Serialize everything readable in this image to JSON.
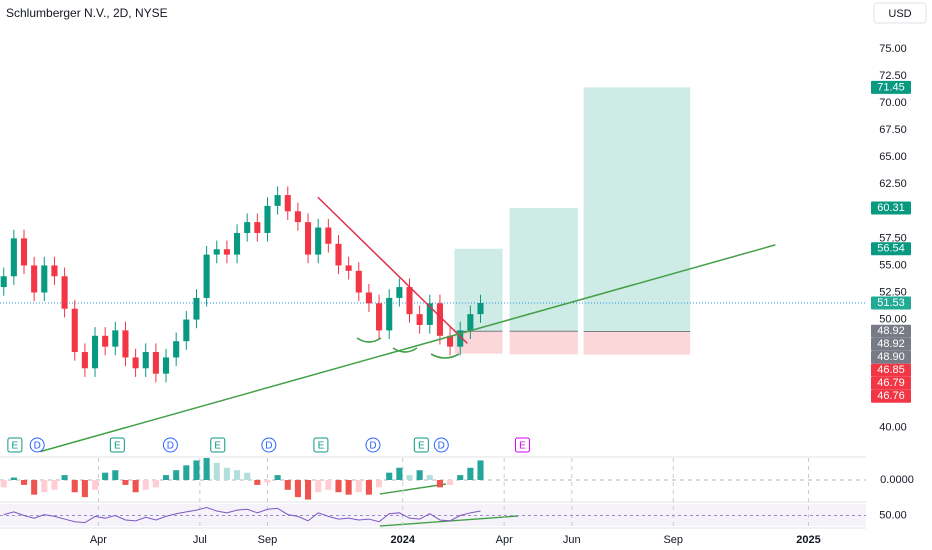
{
  "chart_data": {
    "type": "candlestick",
    "title": "Schlumberger N.V., 2D, NYSE",
    "currency": "USD",
    "x": [
      0.2,
      0.5,
      0.8,
      1.1,
      1.4,
      1.7,
      2.0,
      2.3,
      2.6,
      2.9,
      3.2,
      3.5,
      3.8,
      4.1,
      4.4,
      4.7,
      5.0,
      5.3,
      5.6,
      5.9,
      6.2,
      6.5,
      6.8,
      7.1,
      7.4,
      7.7,
      8.0,
      8.3,
      8.6,
      8.9,
      9.2,
      9.5,
      9.8,
      10.1,
      10.4,
      10.7,
      11.0,
      11.3,
      11.6,
      11.9,
      12.2,
      12.5,
      12.8,
      13.1,
      13.4,
      13.7,
      14.0,
      14.3
    ],
    "open": [
      53,
      54,
      57.5,
      55,
      52.5,
      55,
      54,
      51,
      47,
      45.5,
      48.5,
      47.5,
      49,
      46.5,
      45.5,
      47,
      45,
      46.5,
      48,
      50,
      52,
      56,
      56.5,
      56,
      58,
      59,
      58,
      60.5,
      61.5,
      60,
      59,
      56,
      58.5,
      57,
      55,
      54.5,
      52.5,
      51.5,
      49,
      52,
      53,
      50.5,
      49.5,
      51.5,
      48.5,
      47.5,
      49,
      50.5
    ],
    "high": [
      54.8,
      58.3,
      58.3,
      55.8,
      55.8,
      55.8,
      54.8,
      51.8,
      47.8,
      49.3,
      49.3,
      49.8,
      49.8,
      47.3,
      47.8,
      47.8,
      47.3,
      48.8,
      50.8,
      52.8,
      56.8,
      57.3,
      57.3,
      58.8,
      59.8,
      59.8,
      61.3,
      62.3,
      62.3,
      60.8,
      59.8,
      59.3,
      59.3,
      57.8,
      55.8,
      55.3,
      53.3,
      52.3,
      52.8,
      53.8,
      53.8,
      51.3,
      52.3,
      52.3,
      49.3,
      49.8,
      51.3,
      52.3
    ],
    "low": [
      52.2,
      53.2,
      54.2,
      51.7,
      51.7,
      53.2,
      50.2,
      46.2,
      44.7,
      44.7,
      46.7,
      46.7,
      45.7,
      44.7,
      44.7,
      44.2,
      44.2,
      45.7,
      47.2,
      49.2,
      51.2,
      55.2,
      55.2,
      55.2,
      57.2,
      57.2,
      57.2,
      59.7,
      59.2,
      58.2,
      55.2,
      55.2,
      56.2,
      54.2,
      53.7,
      51.7,
      50.7,
      48.2,
      48.2,
      51.2,
      49.7,
      48.7,
      48.7,
      47.7,
      46.7,
      46.7,
      48.2,
      49.7
    ],
    "close": [
      54,
      57.5,
      55,
      52.5,
      55,
      54,
      51,
      47,
      45.5,
      48.5,
      47.5,
      49,
      46.5,
      45.5,
      47,
      45,
      46.5,
      48,
      50,
      52,
      56,
      56.5,
      56,
      58,
      59,
      58,
      60.5,
      61.5,
      60,
      59,
      56,
      58.5,
      57,
      55,
      54.5,
      52.5,
      51.5,
      49,
      52,
      53,
      50.5,
      49.5,
      51.5,
      48.5,
      47.5,
      49,
      50.5,
      51.53
    ],
    "up_color": "#089981",
    "down_color": "#f23645",
    "xlim": [
      0.09,
      25.7
    ],
    "xticks": [
      {
        "value": 3,
        "label": "Apr"
      },
      {
        "value": 6,
        "label": "Jul"
      },
      {
        "value": 8,
        "label": "Sep"
      },
      {
        "value": 12,
        "label": "2024"
      },
      {
        "value": 15,
        "label": "Apr"
      },
      {
        "value": 17,
        "label": "Jun"
      },
      {
        "value": 20,
        "label": "Sep"
      },
      {
        "value": 24,
        "label": "2025"
      }
    ],
    "ylim": [
      36.38,
      79.52
    ],
    "yticks": [
      {
        "value": 40,
        "label": "40.00"
      },
      {
        "value": 50,
        "label": "50.00"
      },
      {
        "value": 52.5,
        "label": "52.50"
      },
      {
        "value": 55,
        "label": "55.00"
      },
      {
        "value": 57.5,
        "label": "57.50"
      },
      {
        "value": 62.5,
        "label": "62.50"
      },
      {
        "value": 65,
        "label": "65.00"
      },
      {
        "value": 67.5,
        "label": "67.50"
      },
      {
        "value": 70,
        "label": "70.00"
      },
      {
        "value": 72.5,
        "label": "72.50"
      },
      {
        "value": 75,
        "label": "75.00"
      }
    ],
    "last_price": 51.53,
    "price_labels": [
      {
        "value": 71.45,
        "label": "71.45",
        "color": "#089981"
      },
      {
        "value": 60.31,
        "label": "60.31",
        "color": "#089981"
      },
      {
        "value": 56.54,
        "label": "56.54",
        "color": "#089981"
      },
      {
        "value": 51.53,
        "label": "51.53",
        "color": "#22ab94"
      },
      {
        "value": 48.92,
        "label": "48.92",
        "color": "#787b86"
      },
      {
        "value": 48.92,
        "label": "48.92",
        "color": "#787b86"
      },
      {
        "value": 48.9,
        "label": "48.90",
        "color": "#787b86"
      },
      {
        "value": 46.85,
        "label": "46.85",
        "color": "#f23645"
      },
      {
        "value": 46.79,
        "label": "46.79",
        "color": "#f23645"
      },
      {
        "value": 46.76,
        "label": "46.76",
        "color": "#f23645"
      }
    ],
    "positions": [
      {
        "start": 13.53,
        "end": 14.95,
        "entry": 48.92,
        "target": 56.54,
        "stop": 46.85
      },
      {
        "start": 15.16,
        "end": 17.18,
        "entry": 48.92,
        "target": 60.31,
        "stop": 46.79
      },
      {
        "start": 17.35,
        "end": 20.5,
        "entry": 48.9,
        "target": 71.45,
        "stop": 46.76
      }
    ],
    "trendlines": [
      {
        "x": [
          9.49,
          13.91
        ],
        "y": [
          61.3,
          47.8
        ],
        "color": "#e0304a"
      },
      {
        "x": [
          1.28,
          23.02
        ],
        "y": [
          37.8,
          56.9
        ],
        "color": "#43a047"
      }
    ],
    "events": [
      {
        "x": 0.53,
        "label": "E",
        "color": "#089981"
      },
      {
        "x": 1.19,
        "label": "D",
        "color": "#2962ff"
      },
      {
        "x": 3.56,
        "label": "E",
        "color": "#089981"
      },
      {
        "x": 5.13,
        "label": "D",
        "color": "#2962ff"
      },
      {
        "x": 6.53,
        "label": "E",
        "color": "#089981"
      },
      {
        "x": 8.04,
        "label": "D",
        "color": "#2962ff"
      },
      {
        "x": 9.58,
        "label": "E",
        "color": "#089981"
      },
      {
        "x": 11.12,
        "label": "D",
        "color": "#2962ff"
      },
      {
        "x": 12.55,
        "label": "E",
        "color": "#089981"
      },
      {
        "x": 13.14,
        "label": "D",
        "color": "#2962ff"
      },
      {
        "x": 15.54,
        "label": "E",
        "color": "#d500f9"
      }
    ],
    "macd_hist": [
      -0.3,
      0.1,
      -0.2,
      -0.6,
      -0.5,
      -0.4,
      0.2,
      -0.5,
      -0.7,
      -0.4,
      0.3,
      0.4,
      -0.2,
      -0.5,
      -0.4,
      -0.3,
      0.2,
      0.4,
      0.6,
      0.8,
      0.9,
      0.7,
      0.5,
      0.4,
      0.3,
      -0.2,
      -0.1,
      0.2,
      -0.4,
      -0.7,
      -0.8,
      -0.5,
      -0.4,
      -0.5,
      -0.6,
      -0.5,
      -0.6,
      -0.3,
      0.3,
      0.5,
      0.2,
      0.4,
      0.2,
      -0.3,
      -0.2,
      0.2,
      0.5,
      0.8
    ],
    "macd_ylim": [
      -0.9,
      0.9
    ],
    "macd_ticks": [
      {
        "value": 0,
        "label": "0.0000"
      }
    ],
    "rsi": [
      52,
      58,
      50,
      44,
      52,
      48,
      42,
      36,
      34,
      48,
      44,
      50,
      40,
      38,
      46,
      40,
      48,
      54,
      58,
      62,
      68,
      60,
      56,
      62,
      64,
      56,
      64,
      66,
      52,
      48,
      38,
      56,
      48,
      42,
      44,
      40,
      42,
      36,
      54,
      56,
      44,
      42,
      54,
      40,
      38,
      50,
      56,
      60
    ],
    "rsi_ylim": [
      22,
      78
    ],
    "rsi_ticks": [
      {
        "value": 50,
        "label": "50.00"
      }
    ]
  }
}
